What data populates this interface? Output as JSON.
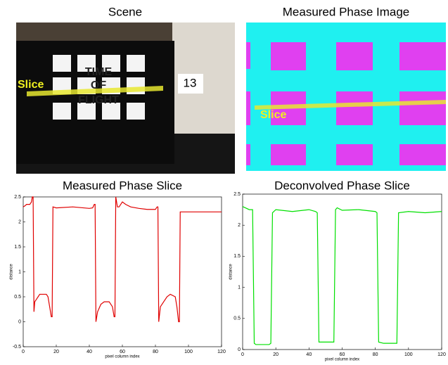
{
  "images": [
    {
      "title": "Scene",
      "annotations": [
        "Slice",
        "13",
        "TIME",
        "OF",
        "FLIGHT"
      ]
    },
    {
      "title": "Measured Phase Image",
      "annotations": [
        "Slice"
      ]
    }
  ],
  "chart_data": [
    {
      "type": "line",
      "title": "Measured Phase Slice",
      "xlabel": "pixel column index",
      "ylabel": "distance",
      "xlim": [
        0,
        120
      ],
      "xticks": [
        0,
        20,
        40,
        60,
        80,
        100,
        120
      ],
      "ylim": [
        -0.5,
        2.5
      ],
      "yticks": [
        -0.5,
        0,
        0.5,
        1,
        1.5,
        2,
        2.5
      ],
      "series": [
        {
          "color": "#e00000",
          "x": [
            0,
            1,
            2,
            4,
            5,
            5.5,
            6,
            6.5,
            7,
            8,
            9,
            10,
            14,
            15,
            16,
            17,
            17.5,
            18,
            20,
            30,
            40,
            42,
            43,
            43.5,
            44,
            45,
            47,
            49,
            52,
            54,
            55,
            55.5,
            56,
            57,
            58,
            60,
            62,
            65,
            70,
            75,
            80,
            81,
            81.5,
            82,
            83,
            85,
            87,
            89,
            92,
            93,
            94,
            94.5,
            95,
            100,
            110,
            120
          ],
          "values": [
            2.3,
            2.32,
            2.35,
            2.35,
            2.4,
            2.5,
            2.5,
            0.2,
            0.4,
            0.45,
            0.5,
            0.55,
            0.55,
            0.5,
            0.3,
            0.1,
            0.1,
            2.3,
            2.28,
            2.3,
            2.27,
            2.28,
            2.35,
            2.35,
            0,
            0.2,
            0.35,
            0.4,
            0.4,
            0.3,
            0.1,
            0.1,
            2.5,
            2.3,
            2.3,
            2.4,
            2.35,
            2.3,
            2.27,
            2.25,
            2.25,
            2.3,
            2.3,
            0,
            0.3,
            0.4,
            0.5,
            0.55,
            0.5,
            0.3,
            0,
            0,
            2.2,
            2.2,
            2.2,
            2.2
          ]
        }
      ]
    },
    {
      "type": "line",
      "title": "Deconvolved Phase Slice",
      "xlabel": "pixel column index",
      "ylabel": "distance",
      "xlim": [
        0,
        120
      ],
      "xticks": [
        0,
        20,
        40,
        60,
        80,
        100,
        120
      ],
      "ylim": [
        0,
        2.5
      ],
      "yticks": [
        0,
        0.5,
        1,
        1.5,
        2,
        2.5
      ],
      "series": [
        {
          "color": "#00e000",
          "x": [
            0,
            4,
            6,
            7,
            8,
            16,
            17,
            18,
            20,
            30,
            40,
            44,
            45,
            46,
            50,
            55,
            56,
            57,
            60,
            70,
            80,
            81,
            82,
            85,
            93,
            94,
            100,
            110,
            120
          ],
          "values": [
            2.3,
            2.25,
            2.25,
            0.1,
            0.08,
            0.08,
            0.1,
            2.2,
            2.25,
            2.22,
            2.25,
            2.22,
            2.2,
            0.12,
            0.12,
            0.12,
            2.25,
            2.28,
            2.24,
            2.25,
            2.22,
            2.2,
            0.12,
            0.1,
            0.1,
            2.2,
            2.22,
            2.2,
            2.22
          ]
        }
      ]
    }
  ]
}
